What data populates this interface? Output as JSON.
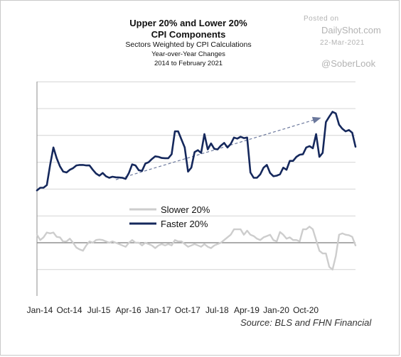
{
  "header": {
    "title_line1": "Upper 20% and Lower 20%",
    "title_line2": "CPI Components",
    "subtitle_line1": "Sectors Weighted by CPI Calculations",
    "subtitle_line2": "Year-over-Year Changes",
    "subtitle_line3": "2014 to February 2021"
  },
  "watermark": {
    "posted_on": "Posted on",
    "site": "DailyShot.com",
    "date": "22-Mar-2021",
    "handle": "@SoberLook"
  },
  "source_note": "Source:  BLS and FHN Financial",
  "colors": {
    "faster": "#15285c",
    "slower": "#cdcdcd",
    "trend": "#6b789c",
    "grid": "#d4d4d4",
    "axis": "#8c8c8c"
  },
  "chart_data": {
    "type": "line",
    "x_tick_labels": [
      "Jan-14",
      "Oct-14",
      "Jul-15",
      "Apr-16",
      "Jan-17",
      "Oct-17",
      "Jul-18",
      "Apr-19",
      "Jan-20",
      "Oct-20"
    ],
    "x_range_months": [
      "2014-01",
      "2021-02"
    ],
    "y_axis_labels_shown": false,
    "y_gridlines_relative": [
      -1,
      0,
      1,
      2,
      3,
      4,
      5,
      6
    ],
    "zero_line_emphasized": true,
    "legend": {
      "placement": "center-left",
      "entries": [
        "Slower 20%",
        "Faster 20%"
      ]
    },
    "series": [
      {
        "name": "Faster 20%",
        "style": "dark-navy-thick",
        "values": [
          1.95,
          2.05,
          2.05,
          2.15,
          2.9,
          3.55,
          3.15,
          2.85,
          2.65,
          2.62,
          2.72,
          2.78,
          2.88,
          2.9,
          2.9,
          2.88,
          2.88,
          2.72,
          2.58,
          2.5,
          2.6,
          2.48,
          2.42,
          2.46,
          2.44,
          2.43,
          2.42,
          2.38,
          2.6,
          2.92,
          2.88,
          2.7,
          2.68,
          2.95,
          3.0,
          3.12,
          3.22,
          3.2,
          3.16,
          3.15,
          3.15,
          3.3,
          4.15,
          4.15,
          3.85,
          3.55,
          2.65,
          2.8,
          3.38,
          3.45,
          3.35,
          4.05,
          3.48,
          3.7,
          3.5,
          3.48,
          3.62,
          3.72,
          3.55,
          3.68,
          3.92,
          3.88,
          3.95,
          3.9,
          3.92,
          2.62,
          2.42,
          2.42,
          2.55,
          2.8,
          2.9,
          2.6,
          2.48,
          2.5,
          2.55,
          2.8,
          2.72,
          3.05,
          3.05,
          3.2,
          3.28,
          3.3,
          3.55,
          3.6,
          3.52,
          4.05,
          3.2,
          3.35,
          4.5,
          4.7,
          4.88,
          4.82,
          4.4,
          4.25,
          4.15,
          4.2,
          4.1,
          3.58
        ]
      },
      {
        "name": "Slower 20%",
        "style": "light-gray-thick",
        "values": [
          0.3,
          0.1,
          0.2,
          0.38,
          0.35,
          0.38,
          0.22,
          0.2,
          0.04,
          0.05,
          0.15,
          0.0,
          -0.18,
          -0.25,
          -0.3,
          -0.1,
          0.05,
          0.0,
          0.1,
          0.12,
          0.1,
          0.05,
          0.0,
          0.05,
          0.0,
          -0.05,
          -0.1,
          -0.15,
          0.0,
          0.1,
          0.0,
          0.0,
          -0.1,
          0.0,
          -0.05,
          -0.1,
          -0.2,
          -0.1,
          -0.05,
          -0.1,
          -0.05,
          -0.1,
          0.1,
          0.05,
          0.05,
          -0.05,
          -0.15,
          -0.1,
          -0.05,
          -0.1,
          -0.15,
          -0.05,
          -0.15,
          -0.2,
          -0.1,
          -0.05,
          0.0,
          0.1,
          0.2,
          0.3,
          0.5,
          0.5,
          0.5,
          0.3,
          0.45,
          0.3,
          0.25,
          0.15,
          0.1,
          0.2,
          0.25,
          0.3,
          0.1,
          0.05,
          0.4,
          0.3,
          0.15,
          0.2,
          0.1,
          0.1,
          0.05,
          0.5,
          0.5,
          0.6,
          0.5,
          0.1,
          -0.3,
          -0.4,
          -0.4,
          -0.9,
          -1.0,
          -0.5,
          0.3,
          0.35,
          0.3,
          0.28,
          0.22,
          -0.1
        ]
      }
    ],
    "trend_line": {
      "style": "dashed-arrow",
      "from": {
        "month": "2016-01",
        "value": 2.35
      },
      "to": {
        "month": "2021-02",
        "value": 4.65
      }
    }
  }
}
